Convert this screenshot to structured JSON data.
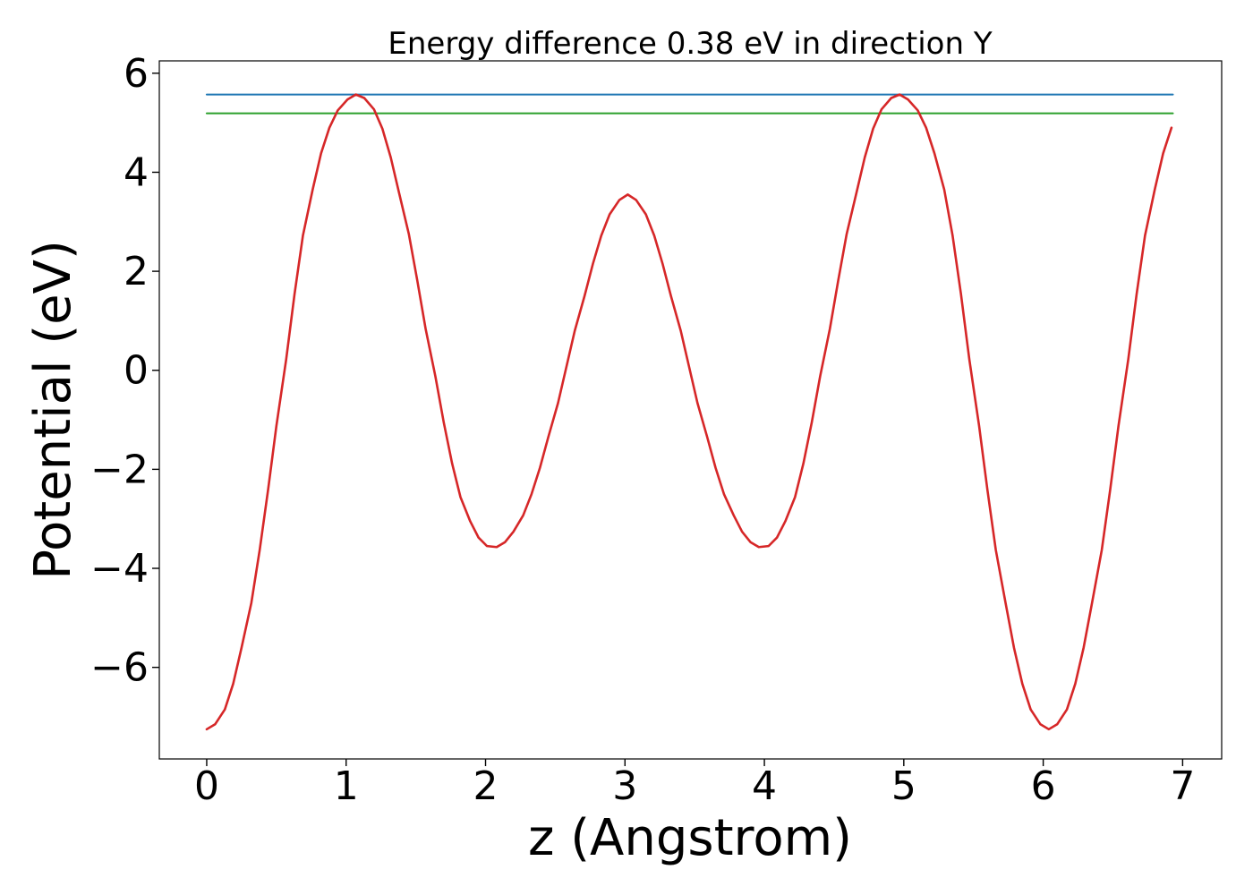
{
  "chart_data": {
    "type": "line",
    "title": "Energy difference 0.38 eV in direction Y",
    "xlabel": "z (Angstrom)",
    "ylabel": "Potential (eV)",
    "xlim": [
      -0.34,
      7.28
    ],
    "ylim": [
      -7.85,
      6.25
    ],
    "xticks": [
      0,
      1,
      2,
      3,
      4,
      5,
      6,
      7
    ],
    "yticks": [
      -6,
      -4,
      -2,
      0,
      2,
      4,
      6
    ],
    "xtick_labels": [
      "0",
      "1",
      "2",
      "3",
      "4",
      "5",
      "6",
      "7"
    ],
    "ytick_labels": [
      "−6",
      "−4",
      "−2",
      "0",
      "2",
      "4",
      "6"
    ],
    "grid": false,
    "legend": "none",
    "series": [
      {
        "kind": "hline",
        "color": "#1f77b4",
        "y": 5.57,
        "x": [
          0,
          6.93
        ]
      },
      {
        "kind": "hline",
        "color": "#2ca02c",
        "y": 5.19,
        "x": [
          0,
          6.93
        ]
      },
      {
        "kind": "curve",
        "color": "#d62728",
        "x": [
          0.0,
          0.06,
          0.13,
          0.19,
          0.25,
          0.32,
          0.38,
          0.44,
          0.5,
          0.57,
          0.63,
          0.69,
          0.76,
          0.82,
          0.88,
          0.94,
          1.01,
          1.07,
          1.13,
          1.2,
          1.26,
          1.32,
          1.38,
          1.45,
          1.51,
          1.57,
          1.64,
          1.7,
          1.76,
          1.82,
          1.89,
          1.95,
          2.01,
          2.08,
          2.14,
          2.2,
          2.27,
          2.33,
          2.39,
          2.45,
          2.52,
          2.58,
          2.64,
          2.71,
          2.77,
          2.83,
          2.89,
          2.96,
          3.02,
          3.08,
          3.15,
          3.21,
          3.27,
          3.33,
          3.4,
          3.46,
          3.52,
          3.59,
          3.65,
          3.71,
          3.78,
          3.84,
          3.9,
          3.96,
          4.03,
          4.09,
          4.15,
          4.22,
          4.28,
          4.34,
          4.4,
          4.47,
          4.53,
          4.59,
          4.66,
          4.72,
          4.78,
          4.84,
          4.91,
          4.97,
          5.03,
          5.1,
          5.16,
          5.22,
          5.29,
          5.35,
          5.41,
          5.47,
          5.54,
          5.6,
          5.66,
          5.73,
          5.79,
          5.85,
          5.91,
          5.98,
          6.04,
          6.1,
          6.17,
          6.23,
          6.29,
          6.35,
          6.42,
          6.48,
          6.54,
          6.61,
          6.67,
          6.73,
          6.8,
          6.86,
          6.92
        ],
        "y": [
          -7.25,
          -7.15,
          -6.85,
          -6.33,
          -5.6,
          -4.7,
          -3.63,
          -2.42,
          -1.12,
          0.22,
          1.54,
          2.72,
          3.65,
          4.38,
          4.9,
          5.25,
          5.47,
          5.57,
          5.5,
          5.27,
          4.88,
          4.3,
          3.58,
          2.75,
          1.82,
          0.84,
          -0.12,
          -1.05,
          -1.88,
          -2.56,
          -3.05,
          -3.38,
          -3.55,
          -3.57,
          -3.47,
          -3.26,
          -2.93,
          -2.5,
          -1.97,
          -1.35,
          -0.66,
          0.07,
          0.8,
          1.5,
          2.15,
          2.72,
          3.15,
          3.44,
          3.55,
          3.44,
          3.15,
          2.72,
          2.15,
          1.5,
          0.8,
          0.07,
          -0.66,
          -1.35,
          -1.97,
          -2.5,
          -2.93,
          -3.26,
          -3.47,
          -3.57,
          -3.55,
          -3.38,
          -3.05,
          -2.56,
          -1.88,
          -1.05,
          -0.12,
          0.84,
          1.82,
          2.75,
          3.58,
          4.3,
          4.88,
          5.27,
          5.5,
          5.57,
          5.47,
          5.25,
          4.9,
          4.38,
          3.65,
          2.72,
          1.54,
          0.22,
          -1.12,
          -2.42,
          -3.63,
          -4.7,
          -5.6,
          -6.33,
          -6.85,
          -7.15,
          -7.25,
          -7.15,
          -6.85,
          -6.33,
          -5.6,
          -4.7,
          -3.63,
          -2.42,
          -1.12,
          0.22,
          1.54,
          2.72,
          3.65,
          4.38,
          4.9
        ]
      }
    ]
  }
}
